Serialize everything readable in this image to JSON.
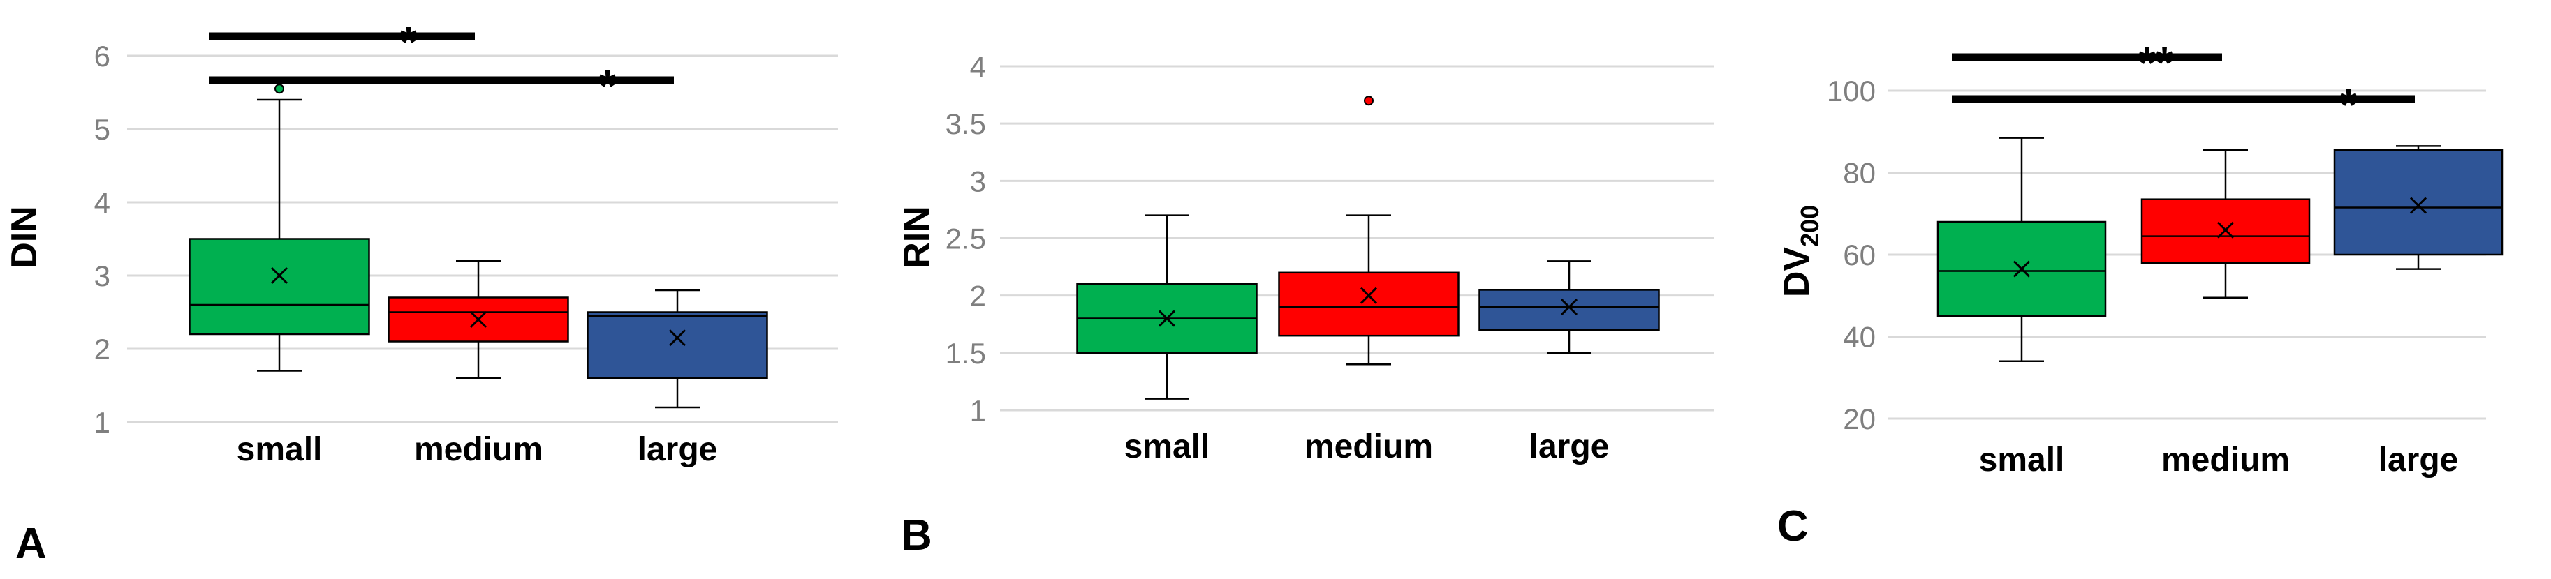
{
  "chart_data": [
    {
      "type": "box",
      "panel": "A",
      "ylabel": "DIN",
      "ylabel_sub": "",
      "ylim": [
        1,
        6
      ],
      "yticks": [
        1,
        2,
        3,
        4,
        5,
        6
      ],
      "categories": [
        "small",
        "medium",
        "large"
      ],
      "colors": [
        "#00b050",
        "#ff0000",
        "#2f5597"
      ],
      "boxes": [
        {
          "min": 1.7,
          "q1": 2.2,
          "median": 2.6,
          "q3": 3.5,
          "max": 5.4,
          "mean": 3.0,
          "outliers": [
            5.55
          ]
        },
        {
          "min": 1.6,
          "q1": 2.1,
          "median": 2.5,
          "q3": 2.7,
          "max": 3.2,
          "mean": 2.4,
          "outliers": []
        },
        {
          "min": 1.2,
          "q1": 1.6,
          "median": 2.45,
          "q3": 2.5,
          "max": 2.8,
          "mean": 2.15,
          "outliers": []
        }
      ],
      "significance": [
        {
          "from": 0,
          "to": 1,
          "label": "*"
        },
        {
          "from": 0,
          "to": 2,
          "label": "*"
        }
      ]
    },
    {
      "type": "box",
      "panel": "B",
      "ylabel": "RIN",
      "ylabel_sub": "",
      "ylim": [
        1,
        4
      ],
      "yticks": [
        1,
        1.5,
        2,
        2.5,
        3,
        3.5,
        4
      ],
      "categories": [
        "small",
        "medium",
        "large"
      ],
      "colors": [
        "#00b050",
        "#ff0000",
        "#2f5597"
      ],
      "boxes": [
        {
          "min": 1.1,
          "q1": 1.5,
          "median": 1.8,
          "q3": 2.1,
          "max": 2.7,
          "mean": 1.8,
          "outliers": []
        },
        {
          "min": 1.4,
          "q1": 1.65,
          "median": 1.9,
          "q3": 2.2,
          "max": 2.7,
          "mean": 2.0,
          "outliers": [
            3.7
          ]
        },
        {
          "min": 1.5,
          "q1": 1.7,
          "median": 1.9,
          "q3": 2.05,
          "max": 2.3,
          "mean": 1.9,
          "outliers": []
        }
      ],
      "significance": []
    },
    {
      "type": "box",
      "panel": "C",
      "ylabel": "DV",
      "ylabel_sub": "200",
      "ylim": [
        20,
        100
      ],
      "yticks": [
        20,
        40,
        60,
        80,
        100
      ],
      "categories": [
        "small",
        "medium",
        "large"
      ],
      "colors": [
        "#00b050",
        "#ff0000",
        "#2f5597"
      ],
      "boxes": [
        {
          "min": 34,
          "q1": 45,
          "median": 56,
          "q3": 68,
          "max": 88.5,
          "mean": 56.5,
          "outliers": []
        },
        {
          "min": 49.5,
          "q1": 58,
          "median": 64.5,
          "q3": 73.5,
          "max": 85.5,
          "mean": 66,
          "outliers": []
        },
        {
          "min": 56.5,
          "q1": 60,
          "median": 71.5,
          "q3": 85.5,
          "max": 86.5,
          "mean": 72,
          "outliers": []
        }
      ],
      "significance": [
        {
          "from": 0,
          "to": 1,
          "label": "**"
        },
        {
          "from": 0,
          "to": 2,
          "label": "*"
        }
      ]
    }
  ]
}
